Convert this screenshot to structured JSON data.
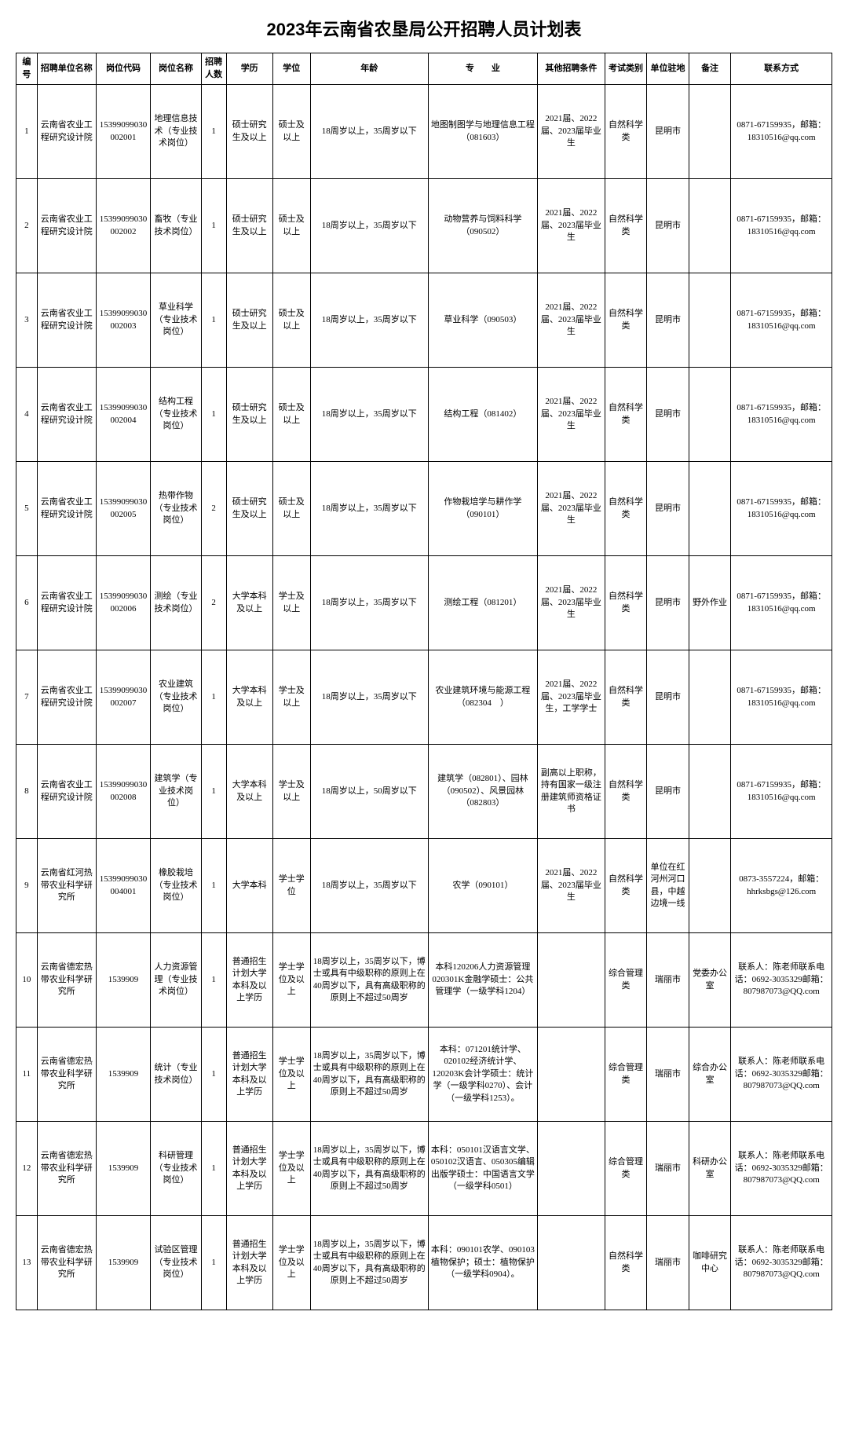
{
  "title": "2023年云南省农垦局公开招聘人员计划表",
  "headers": {
    "num": "编号",
    "unit": "招聘单位名称",
    "code": "岗位代码",
    "position": "岗位名称",
    "count": "招聘人数",
    "education": "学历",
    "degree": "学位",
    "age": "年龄",
    "major": "专　　业",
    "other": "其他招聘条件",
    "exam": "考试类别",
    "location": "单位驻地",
    "remark": "备注",
    "contact": "联系方式"
  },
  "rows": [
    {
      "num": "1",
      "unit": "云南省农业工程研究设计院",
      "code": "15399099030002001",
      "position": "地理信息技术（专业技术岗位）",
      "count": "1",
      "education": "硕士研究生及以上",
      "degree": "硕士及以上",
      "age": "18周岁以上，35周岁以下",
      "major": "地图制图学与地理信息工程（081603）",
      "other": "2021届、2022届、2023届毕业生",
      "exam": "自然科学类",
      "location": "昆明市",
      "remark": "",
      "contact": "0871-67159935，邮箱：18310516@qq.com"
    },
    {
      "num": "2",
      "unit": "云南省农业工程研究设计院",
      "code": "15399099030002002",
      "position": "畜牧（专业技术岗位）",
      "count": "1",
      "education": "硕士研究生及以上",
      "degree": "硕士及以上",
      "age": "18周岁以上，35周岁以下",
      "major": "动物营养与饲料科学（090502）",
      "other": "2021届、2022届、2023届毕业生",
      "exam": "自然科学类",
      "location": "昆明市",
      "remark": "",
      "contact": "0871-67159935，邮箱：18310516@qq.com"
    },
    {
      "num": "3",
      "unit": "云南省农业工程研究设计院",
      "code": "15399099030002003",
      "position": "草业科学（专业技术岗位）",
      "count": "1",
      "education": "硕士研究生及以上",
      "degree": "硕士及以上",
      "age": "18周岁以上，35周岁以下",
      "major": "草业科学（090503）",
      "other": "2021届、2022届、2023届毕业生",
      "exam": "自然科学类",
      "location": "昆明市",
      "remark": "",
      "contact": "0871-67159935，邮箱：18310516@qq.com"
    },
    {
      "num": "4",
      "unit": "云南省农业工程研究设计院",
      "code": "15399099030002004",
      "position": "结构工程（专业技术岗位）",
      "count": "1",
      "education": "硕士研究生及以上",
      "degree": "硕士及以上",
      "age": "18周岁以上，35周岁以下",
      "major": "结构工程（081402）",
      "other": "2021届、2022届、2023届毕业生",
      "exam": "自然科学类",
      "location": "昆明市",
      "remark": "",
      "contact": "0871-67159935，邮箱：18310516@qq.com"
    },
    {
      "num": "5",
      "unit": "云南省农业工程研究设计院",
      "code": "15399099030002005",
      "position": "热带作物（专业技术岗位）",
      "count": "2",
      "education": "硕士研究生及以上",
      "degree": "硕士及以上",
      "age": "18周岁以上，35周岁以下",
      "major": "作物栽培学与耕作学（090101）",
      "other": "2021届、2022届、2023届毕业生",
      "exam": "自然科学类",
      "location": "昆明市",
      "remark": "",
      "contact": "0871-67159935，邮箱：18310516@qq.com"
    },
    {
      "num": "6",
      "unit": "云南省农业工程研究设计院",
      "code": "15399099030002006",
      "position": "测绘（专业技术岗位）",
      "count": "2",
      "education": "大学本科及以上",
      "degree": "学士及以上",
      "age": "18周岁以上，35周岁以下",
      "major": "测绘工程（081201）",
      "other": "2021届、2022届、2023届毕业生",
      "exam": "自然科学类",
      "location": "昆明市",
      "remark": "野外作业",
      "contact": "0871-67159935，邮箱：18310516@qq.com"
    },
    {
      "num": "7",
      "unit": "云南省农业工程研究设计院",
      "code": "15399099030002007",
      "position": "农业建筑（专业技术岗位）",
      "count": "1",
      "education": "大学本科及以上",
      "degree": "学士及以上",
      "age": "18周岁以上，35周岁以下",
      "major": "农业建筑环境与能源工程（082304　）",
      "other": "2021届、2022届、2023届毕业生，工学学士",
      "exam": "自然科学类",
      "location": "昆明市",
      "remark": "",
      "contact": "0871-67159935，邮箱：18310516@qq.com"
    },
    {
      "num": "8",
      "unit": "云南省农业工程研究设计院",
      "code": "15399099030002008",
      "position": "建筑学（专业技术岗位）",
      "count": "1",
      "education": "大学本科及以上",
      "degree": "学士及以上",
      "age": "18周岁以上，50周岁以下",
      "major": "建筑学（082801）、园林（090502）、风景园林（082803）",
      "other": "副高以上职称，持有国家一级注册建筑师资格证书",
      "exam": "自然科学类",
      "location": "昆明市",
      "remark": "",
      "contact": "0871-67159935，邮箱：18310516@qq.com"
    },
    {
      "num": "9",
      "unit": "云南省红河热带农业科学研究所",
      "code": "15399099030004001",
      "position": "橡胶栽培（专业技术岗位）",
      "count": "1",
      "education": "大学本科",
      "degree": "学士学位",
      "age": "18周岁以上，35周岁以下",
      "major": "农学（090101）",
      "other": "2021届、2022届、2023届毕业生",
      "exam": "自然科学类",
      "location": "单位在红河州河口县，中越边境一线",
      "remark": "",
      "contact": "0873-3557224，邮箱：hhrksbgs@126.com"
    },
    {
      "num": "10",
      "unit": "云南省德宏热带农业科学研究所",
      "code": "1539909",
      "position": "人力资源管理（专业技术岗位）",
      "count": "1",
      "education": "普通招生计划大学本科及以上学历",
      "degree": "学士学位及以上",
      "age": "18周岁以上，35周岁以下，博士或具有中级职称的原则上在40周岁以下，具有高级职称的原则上不超过50周岁",
      "major": "本科120206人力资源管理020301K金融学硕士：公共管理学（一级学科1204）",
      "other": "",
      "exam": "综合管理类",
      "location": "瑞丽市",
      "remark": "党委办公室",
      "contact": "联系人：陈老师联系电话：0692-3035329邮箱：807987073@QQ.com"
    },
    {
      "num": "11",
      "unit": "云南省德宏热带农业科学研究所",
      "code": "1539909",
      "position": "统计（专业技术岗位）",
      "count": "1",
      "education": "普通招生计划大学本科及以上学历",
      "degree": "学士学位及以上",
      "age": "18周岁以上，35周岁以下，博士或具有中级职称的原则上在40周岁以下，具有高级职称的原则上不超过50周岁",
      "major": "本科：071201统计学、020102经济统计学、120203K会计学硕士：统计学（一级学科0270）、会计（一级学科1253）。",
      "other": "",
      "exam": "综合管理类",
      "location": "瑞丽市",
      "remark": "综合办公室",
      "contact": "联系人：陈老师联系电话：0692-3035329邮箱：807987073@QQ.com"
    },
    {
      "num": "12",
      "unit": "云南省德宏热带农业科学研究所",
      "code": "1539909",
      "position": "科研管理（专业技术岗位）",
      "count": "1",
      "education": "普通招生计划大学本科及以上学历",
      "degree": "学士学位及以上",
      "age": "18周岁以上，35周岁以下，博士或具有中级职称的原则上在40周岁以下，具有高级职称的原则上不超过50周岁",
      "major": "本科：050101汉语言文学、050102汉语言、050305编辑出版学硕士：中国语言文学（一级学科0501）",
      "other": "",
      "exam": "综合管理类",
      "location": "瑞丽市",
      "remark": "科研办公室",
      "contact": "联系人：陈老师联系电话：0692-3035329邮箱：807987073@QQ.com"
    },
    {
      "num": "13",
      "unit": "云南省德宏热带农业科学研究所",
      "code": "1539909",
      "position": "试验区管理（专业技术岗位）",
      "count": "1",
      "education": "普通招生计划大学本科及以上学历",
      "degree": "学士学位及以上",
      "age": "18周岁以上，35周岁以下，博士或具有中级职称的原则上在40周岁以下，具有高级职称的原则上不超过50周岁",
      "major": "本科：090101农学、090103植物保护；硕士：植物保护（一级学科0904）。",
      "other": "",
      "exam": "自然科学类",
      "location": "瑞丽市",
      "remark": "咖啡研究中心",
      "contact": "联系人：陈老师联系电话：0692-3035329邮箱：807987073@QQ.com"
    }
  ]
}
